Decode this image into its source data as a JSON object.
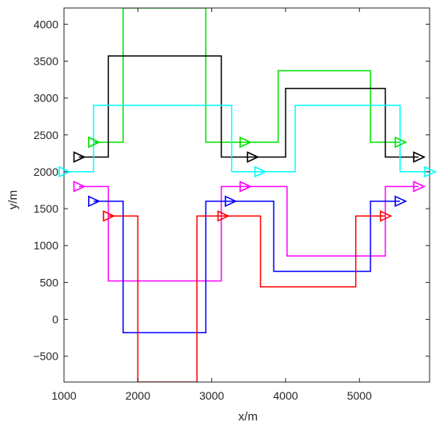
{
  "chart_data": {
    "type": "line",
    "xlabel": "x/m",
    "ylabel": "y/m",
    "xlim": [
      1000,
      5950
    ],
    "ylim": [
      -850,
      4220
    ],
    "xticks": [
      1000,
      2000,
      3000,
      4000,
      5000
    ],
    "yticks": [
      -500,
      0,
      500,
      1000,
      1500,
      2000,
      2500,
      3000,
      3500,
      4000
    ],
    "xtick_labels": [
      "1000",
      "2000",
      "3000",
      "4000",
      "5000"
    ],
    "ytick_labels": [
      "−500",
      "0",
      "500",
      "1000",
      "1500",
      "2000",
      "2500",
      "3000",
      "3500",
      "4000"
    ],
    "grid": false,
    "series": [
      {
        "color": "#00e000",
        "x": [
          1400,
          1800,
          1800,
          2920,
          2920,
          3450,
          3900,
          3900,
          5150,
          5150,
          5550
        ],
        "y": [
          2400,
          2400,
          4220,
          4220,
          2400,
          2400,
          2400,
          3370,
          3370,
          2400,
          2400
        ],
        "markers": [
          [
            1400,
            2400
          ],
          [
            3450,
            2400
          ],
          [
            5550,
            2400
          ]
        ]
      },
      {
        "color": "#000000",
        "x": [
          1200,
          1600,
          1600,
          3130,
          3130,
          3550,
          4000,
          4000,
          5350,
          5350,
          5800
        ],
        "y": [
          2200,
          2200,
          3570,
          3570,
          2200,
          2200,
          2200,
          3130,
          3130,
          2200,
          2200
        ],
        "markers": [
          [
            1200,
            2200
          ],
          [
            3550,
            2200
          ],
          [
            5800,
            2200
          ]
        ]
      },
      {
        "color": "#00ffff",
        "x": [
          1000,
          1400,
          1400,
          3270,
          3270,
          3650,
          4130,
          4130,
          5550,
          5550,
          5950
        ],
        "y": [
          2000,
          2000,
          2900,
          2900,
          2000,
          2000,
          2000,
          2900,
          2900,
          2000,
          2000
        ],
        "markers": [
          [
            1000,
            2000
          ],
          [
            3650,
            2000
          ],
          [
            5950,
            2000
          ]
        ]
      },
      {
        "color": "#ff00ff",
        "x": [
          1200,
          1600,
          1600,
          3130,
          3130,
          3450,
          3450,
          3450,
          4020,
          4020,
          5350,
          5350,
          5800
        ],
        "y": [
          1800,
          1800,
          520,
          520,
          1800,
          1800,
          1800,
          1800,
          1800,
          860,
          860,
          1800,
          1800
        ],
        "markers": [
          [
            1200,
            1800
          ],
          [
            3450,
            1800
          ],
          [
            5800,
            1800
          ]
        ]
      },
      {
        "color": "#0000ff",
        "x": [
          1400,
          1800,
          1800,
          2920,
          2920,
          3250,
          3250,
          3840,
          3840,
          5150,
          5150,
          5550
        ],
        "y": [
          1600,
          1600,
          -180,
          -180,
          1600,
          1600,
          1600,
          1600,
          650,
          650,
          1600,
          1600
        ],
        "markers": [
          [
            1400,
            1600
          ],
          [
            3250,
            1600
          ],
          [
            5550,
            1600
          ]
        ]
      },
      {
        "color": "#ff0000",
        "x": [
          1600,
          2000,
          2000,
          2800,
          2800,
          3150,
          3150,
          3660,
          3660,
          4950,
          4950,
          5350
        ],
        "y": [
          1400,
          1400,
          -850,
          -850,
          1400,
          1400,
          1400,
          1400,
          440,
          440,
          1400,
          1400
        ],
        "markers": [
          [
            1600,
            1400
          ],
          [
            3150,
            1400
          ],
          [
            5350,
            1400
          ]
        ]
      }
    ]
  }
}
